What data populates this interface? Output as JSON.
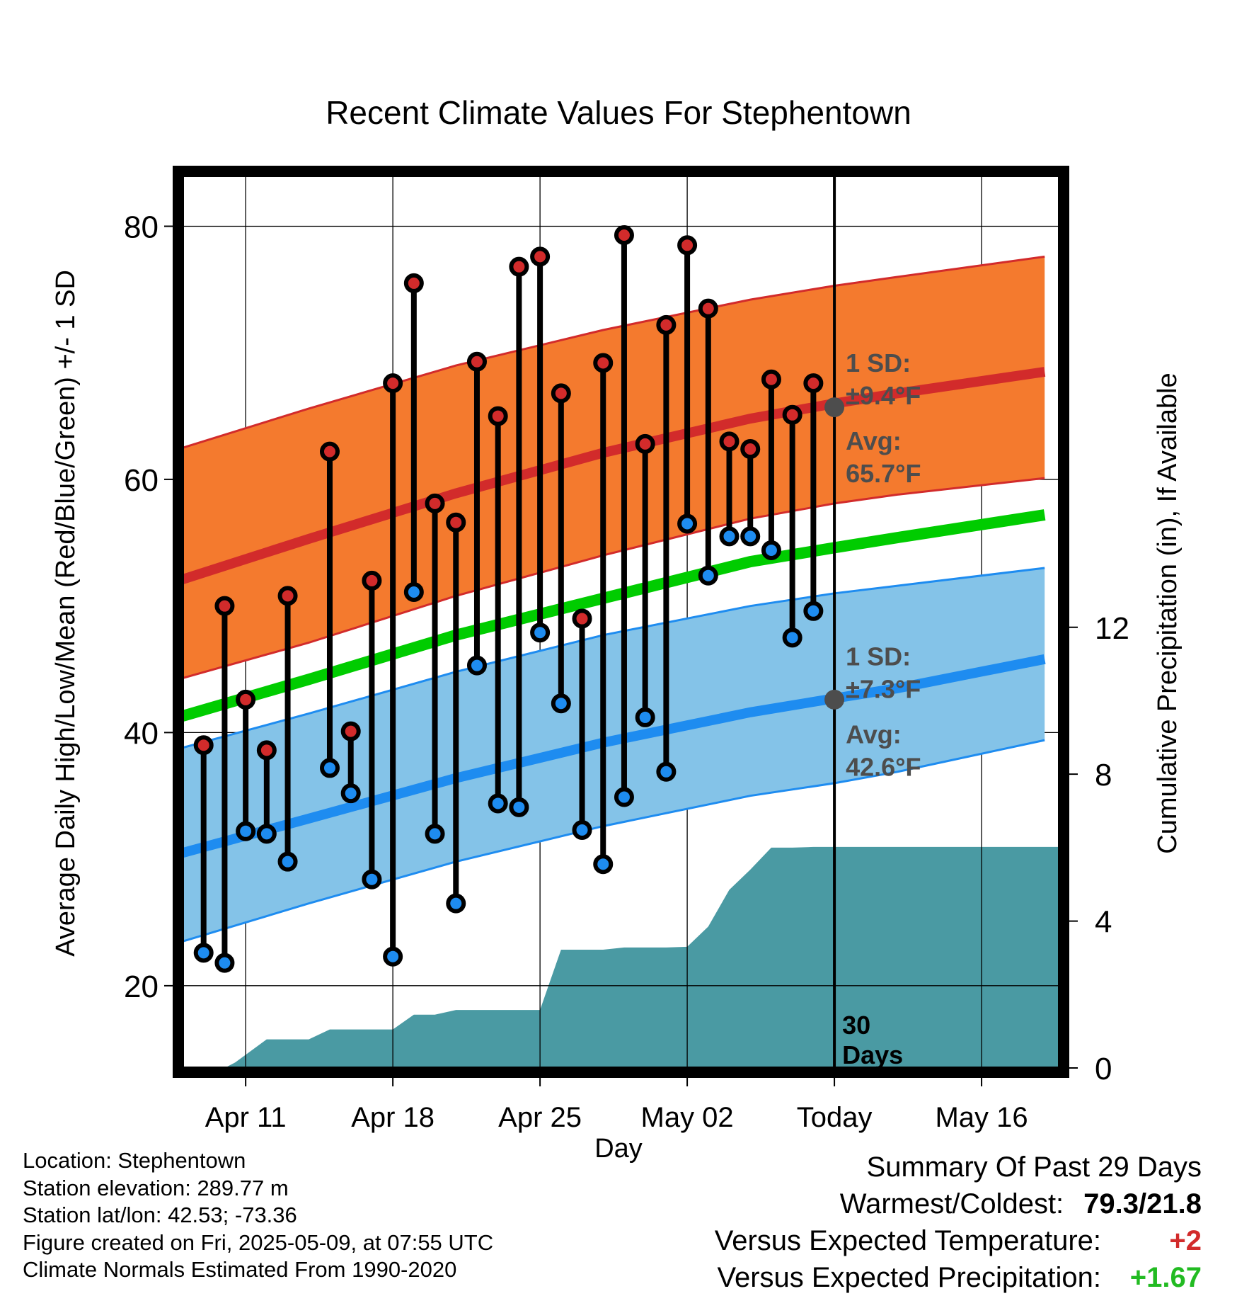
{
  "colors": {
    "high_band": "#f47a2e",
    "high_line": "#d22b2b",
    "low_band": "#84c3e8",
    "low_line": "#1e8cf0",
    "mean_line": "#00cc00",
    "high_dot": "#d22b2b",
    "low_dot": "#1e8cf0",
    "precip_fill": "#4a9aa3",
    "avg_marker": "#4d4d4d",
    "annotation_text": "#4d4d4d",
    "positive_temp": "#d22b2b",
    "positive_precip": "#22bb22"
  },
  "chart_data": {
    "type": "line",
    "title": "Recent Climate Values For Stephentown",
    "xlabel": "Day",
    "ylabel": "Average Daily High/Low/Mean (Red/Blue/Green) +/- 1 SD",
    "y2label": "Cumulative Precipitation (in), If Available",
    "x_ticks": [
      {
        "day": 11,
        "label": "Apr 11"
      },
      {
        "day": 18,
        "label": "Apr 18"
      },
      {
        "day": 25,
        "label": "Apr 25"
      },
      {
        "day": 32,
        "label": "May 02"
      },
      {
        "day": 39,
        "label": "Today"
      },
      {
        "day": 46,
        "label": "May 16"
      }
    ],
    "xlim_days": [
      8,
      49.7
    ],
    "x_day_note": "day numbers count April dates; day 31 = May 01, day 39 = May 09",
    "ylim": [
      13.5,
      84
    ],
    "y_ticks": [
      20,
      40,
      60,
      80
    ],
    "y_minor_ticks": [
      30,
      50,
      70
    ],
    "y2lim": [
      0,
      24.3
    ],
    "y2_ticks": [
      0,
      4,
      8,
      12
    ],
    "grid": true,
    "today_day": 39,
    "window_label": "30\nDays",
    "avg_high": {
      "days": [
        8,
        14,
        21,
        28,
        35,
        39,
        42,
        49
      ],
      "values": [
        52.1,
        55.3,
        58.9,
        62.1,
        64.8,
        66.0,
        66.8,
        68.5
      ],
      "sd_label": "1 SD:",
      "sd_value": "±9.4°F",
      "avg_label": "Avg:",
      "avg_value": "65.7°F",
      "marker_value": 65.7
    },
    "high_band": {
      "days": [
        8,
        14,
        21,
        28,
        35,
        39,
        42,
        49
      ],
      "upper": [
        62.5,
        65.6,
        69.0,
        71.8,
        74.2,
        75.3,
        76.0,
        77.6
      ],
      "lower": [
        44.3,
        47.1,
        50.8,
        54.0,
        56.9,
        58.1,
        58.8,
        60.1
      ]
    },
    "avg_mean": {
      "days": [
        8,
        14,
        21,
        28,
        35,
        39,
        42,
        49
      ],
      "values": [
        41.3,
        44.2,
        47.7,
        50.6,
        53.5,
        54.6,
        55.4,
        57.2
      ]
    },
    "avg_low": {
      "days": [
        8,
        14,
        21,
        28,
        35,
        39,
        42,
        49
      ],
      "values": [
        30.5,
        33.2,
        36.4,
        39.2,
        41.6,
        42.7,
        43.5,
        45.8
      ],
      "sd_label": "1 SD:",
      "sd_value": "±7.3°F",
      "avg_label": "Avg:",
      "avg_value": "42.6°F",
      "marker_value": 42.6
    },
    "low_band": {
      "days": [
        8,
        14,
        21,
        28,
        35,
        39,
        42,
        49
      ],
      "upper": [
        38.8,
        41.5,
        44.8,
        47.7,
        50.0,
        51.0,
        51.6,
        53.0
      ],
      "lower": [
        23.5,
        26.5,
        29.8,
        32.6,
        35.0,
        36.0,
        36.9,
        39.4
      ]
    },
    "observations": [
      {
        "day": 9,
        "high": 39.0,
        "low": 22.6
      },
      {
        "day": 10,
        "high": 50.0,
        "low": 21.8
      },
      {
        "day": 11,
        "high": 42.6,
        "low": 32.2
      },
      {
        "day": 12,
        "high": 38.6,
        "low": 32.0
      },
      {
        "day": 13,
        "high": 50.8,
        "low": 29.8
      },
      {
        "day": 15,
        "high": 62.2,
        "low": 37.2
      },
      {
        "day": 16,
        "high": 40.1,
        "low": 35.2
      },
      {
        "day": 17,
        "high": 52.0,
        "low": 28.4
      },
      {
        "day": 18,
        "high": 67.6,
        "low": 22.3
      },
      {
        "day": 19,
        "high": 75.5,
        "low": 51.1
      },
      {
        "day": 20,
        "high": 58.1,
        "low": 32.0
      },
      {
        "day": 21,
        "high": 56.6,
        "low": 26.5
      },
      {
        "day": 22,
        "high": 69.3,
        "low": 45.3
      },
      {
        "day": 23,
        "high": 65.0,
        "low": 34.4
      },
      {
        "day": 24,
        "high": 76.8,
        "low": 34.1
      },
      {
        "day": 25,
        "high": 77.6,
        "low": 47.9
      },
      {
        "day": 26,
        "high": 66.8,
        "low": 42.3
      },
      {
        "day": 27,
        "high": 49.0,
        "low": 32.3
      },
      {
        "day": 28,
        "high": 69.2,
        "low": 29.6
      },
      {
        "day": 29,
        "high": 79.3,
        "low": 34.9
      },
      {
        "day": 30,
        "high": 62.8,
        "low": 41.2
      },
      {
        "day": 31,
        "high": 72.2,
        "low": 36.9
      },
      {
        "day": 32,
        "high": 78.5,
        "low": 56.5
      },
      {
        "day": 33,
        "high": 73.5,
        "low": 52.4
      },
      {
        "day": 34,
        "high": 63.0,
        "low": 55.5
      },
      {
        "day": 35,
        "high": 62.4,
        "low": 55.5
      },
      {
        "day": 36,
        "high": 67.9,
        "low": 54.4
      },
      {
        "day": 37,
        "high": 65.1,
        "low": 47.5
      },
      {
        "day": 38,
        "high": 67.6,
        "low": 49.6
      }
    ],
    "precipitation": {
      "days": [
        8,
        10,
        10.5,
        12,
        13,
        14,
        15,
        16,
        17,
        18,
        19,
        20,
        21,
        22,
        23,
        24,
        25,
        26,
        27,
        28,
        29,
        30,
        31,
        32,
        33,
        34,
        35,
        36,
        37,
        38,
        39,
        49.7
      ],
      "values": [
        0.0,
        0.0,
        0.15,
        0.78,
        0.78,
        0.78,
        1.05,
        1.05,
        1.05,
        1.05,
        1.45,
        1.45,
        1.58,
        1.58,
        1.58,
        1.58,
        1.58,
        3.22,
        3.22,
        3.22,
        3.28,
        3.28,
        3.28,
        3.3,
        3.85,
        4.85,
        5.4,
        6.0,
        6.0,
        6.02,
        6.02,
        6.02
      ]
    }
  },
  "info": {
    "location": "Location: Stephentown",
    "elevation": "Station elevation: 289.77 m",
    "latlon": "Station lat/lon: 42.53; -73.36",
    "created": "Figure created on Fri, 2025-05-09, at 07:55 UTC",
    "normals": "Climate Normals Estimated From 1990-2020"
  },
  "summary": {
    "title": "Summary Of Past 29 Days",
    "warmest_label": "Warmest/Coldest:",
    "warmest_value": "79.3/21.8",
    "temp_label": "Versus Expected Temperature:",
    "temp_value": "+2",
    "precip_label": "Versus Expected Precipitation:",
    "precip_value": "+1.67"
  }
}
